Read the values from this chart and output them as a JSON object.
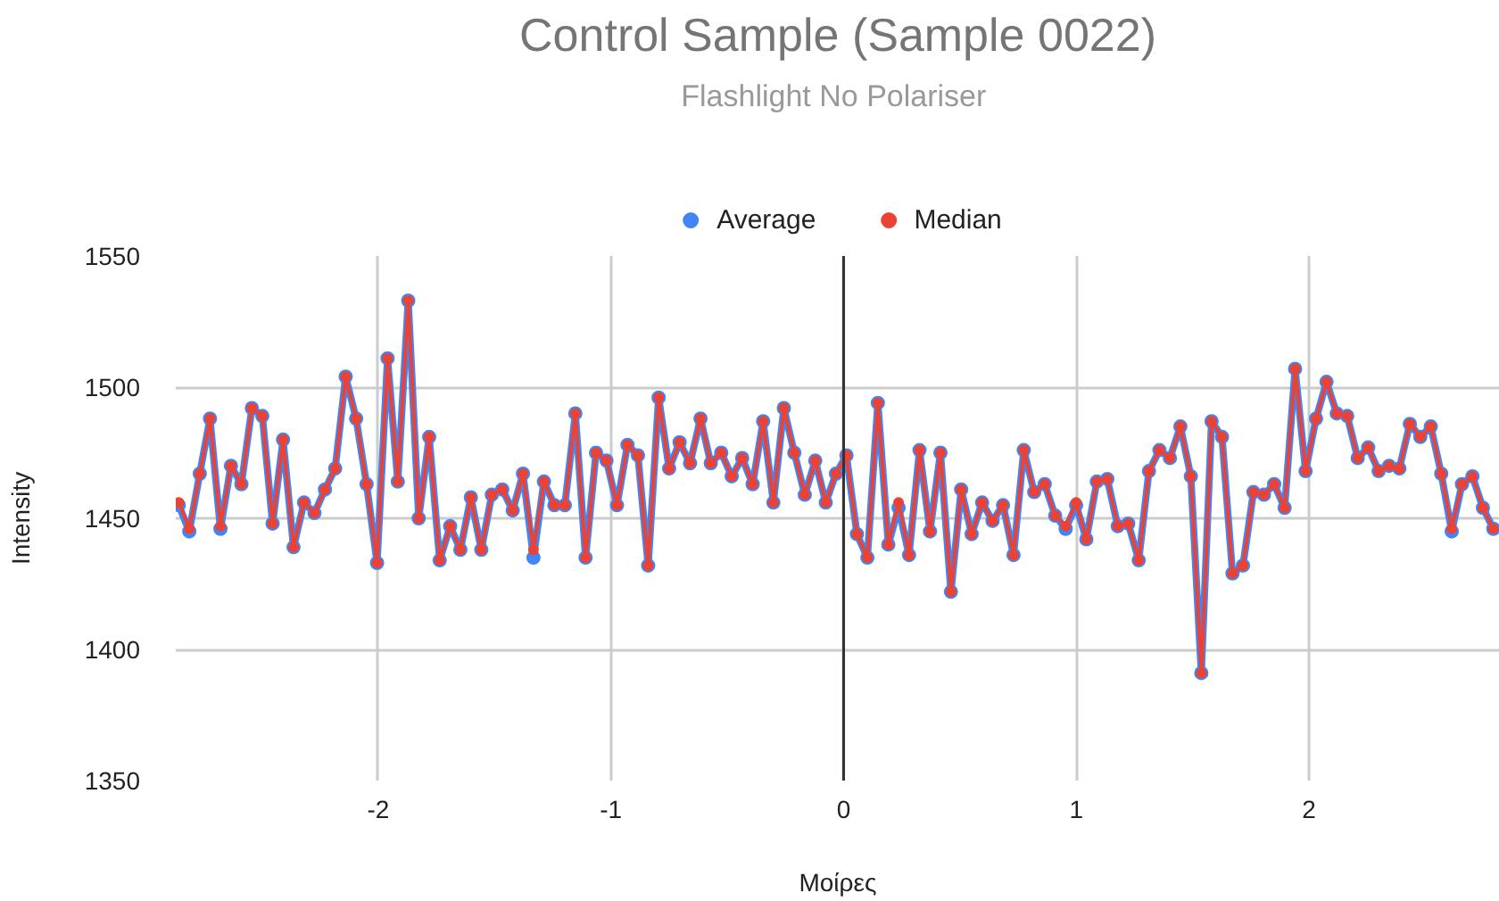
{
  "chart_data": {
    "type": "line",
    "title": "Control Sample (Sample 0022)",
    "subtitle": "Flashlight  No Polariser",
    "xlabel": "Μοίρες",
    "ylabel": "Intensity",
    "x": [
      -2.857,
      -2.812,
      -2.767,
      -2.723,
      -2.678,
      -2.633,
      -2.588,
      -2.543,
      -2.498,
      -2.454,
      -2.409,
      -2.364,
      -2.319,
      -2.274,
      -2.229,
      -2.185,
      -2.14,
      -2.095,
      -2.05,
      -2.005,
      -1.96,
      -1.916,
      -1.871,
      -1.826,
      -1.781,
      -1.736,
      -1.691,
      -1.647,
      -1.602,
      -1.557,
      -1.512,
      -1.467,
      -1.422,
      -1.378,
      -1.333,
      -1.288,
      -1.243,
      -1.198,
      -1.153,
      -1.109,
      -1.064,
      -1.019,
      -0.974,
      -0.929,
      -0.884,
      -0.84,
      -0.795,
      -0.75,
      -0.705,
      -0.66,
      -0.615,
      -0.571,
      -0.526,
      -0.481,
      -0.436,
      -0.391,
      -0.346,
      -0.302,
      -0.257,
      -0.212,
      -0.167,
      -0.122,
      -0.077,
      -0.033,
      0.012,
      0.057,
      0.102,
      0.147,
      0.192,
      0.236,
      0.281,
      0.326,
      0.371,
      0.416,
      0.461,
      0.505,
      0.55,
      0.595,
      0.64,
      0.685,
      0.73,
      0.774,
      0.819,
      0.864,
      0.909,
      0.954,
      0.999,
      1.043,
      1.088,
      1.133,
      1.178,
      1.223,
      1.268,
      1.312,
      1.357,
      1.402,
      1.447,
      1.492,
      1.537,
      1.581,
      1.626,
      1.671,
      1.716,
      1.761,
      1.806,
      1.85,
      1.895,
      1.94,
      1.985,
      2.03,
      2.075,
      2.119,
      2.164,
      2.209,
      2.254,
      2.299,
      2.344,
      2.388,
      2.433,
      2.478,
      2.523,
      2.568,
      2.613,
      2.657,
      2.702,
      2.747,
      2.792
    ],
    "series": [
      {
        "name": "Average",
        "color": "#4285f4",
        "values": [
          1455,
          1445,
          1467,
          1488,
          1446,
          1470,
          1463,
          1492,
          1489,
          1448,
          1480,
          1439,
          1456,
          1452,
          1461,
          1469,
          1504,
          1488,
          1463,
          1433,
          1511,
          1464,
          1533,
          1450,
          1481,
          1434,
          1447,
          1438,
          1458,
          1438,
          1459,
          1461,
          1453,
          1467,
          1435,
          1464,
          1455,
          1455,
          1490,
          1435,
          1475,
          1472,
          1455,
          1478,
          1474,
          1432,
          1496,
          1469,
          1479,
          1471,
          1488,
          1471,
          1475,
          1466,
          1473,
          1463,
          1487,
          1456,
          1492,
          1475,
          1459,
          1472,
          1456,
          1467,
          1474,
          1444,
          1435,
          1494,
          1440,
          1454,
          1436,
          1476,
          1445,
          1475,
          1422,
          1461,
          1444,
          1456,
          1449,
          1455,
          1436,
          1476,
          1460,
          1463,
          1451,
          1446,
          1455,
          1442,
          1464,
          1465,
          1447,
          1448,
          1434,
          1468,
          1476,
          1473,
          1485,
          1466,
          1391,
          1487,
          1481,
          1429,
          1432,
          1460,
          1459,
          1463,
          1454,
          1507,
          1468,
          1488,
          1502,
          1490,
          1489,
          1473,
          1477,
          1468,
          1470,
          1469,
          1486,
          1481,
          1485,
          1467,
          1445,
          1463,
          1466,
          1454,
          1446
        ]
      },
      {
        "name": "Median",
        "color": "#ea4335",
        "values": [
          1456,
          1446,
          1467,
          1488,
          1447,
          1470,
          1463,
          1492,
          1489,
          1448,
          1480,
          1439,
          1456,
          1452,
          1461,
          1469,
          1504,
          1488,
          1463,
          1433,
          1511,
          1464,
          1533,
          1450,
          1481,
          1434,
          1447,
          1438,
          1458,
          1438,
          1459,
          1461,
          1453,
          1467,
          1438,
          1464,
          1455,
          1455,
          1490,
          1435,
          1475,
          1472,
          1455,
          1478,
          1474,
          1432,
          1496,
          1469,
          1479,
          1471,
          1488,
          1471,
          1475,
          1466,
          1473,
          1463,
          1487,
          1456,
          1492,
          1475,
          1459,
          1472,
          1456,
          1467,
          1474,
          1444,
          1435,
          1494,
          1440,
          1456,
          1436,
          1476,
          1445,
          1475,
          1422,
          1461,
          1444,
          1456,
          1449,
          1455,
          1436,
          1476,
          1460,
          1463,
          1451,
          1447,
          1456,
          1442,
          1464,
          1465,
          1447,
          1448,
          1434,
          1468,
          1476,
          1473,
          1485,
          1466,
          1391,
          1487,
          1481,
          1429,
          1432,
          1460,
          1459,
          1463,
          1454,
          1507,
          1468,
          1488,
          1502,
          1490,
          1489,
          1473,
          1477,
          1468,
          1470,
          1469,
          1486,
          1481,
          1485,
          1467,
          1446,
          1463,
          1466,
          1454,
          1446
        ]
      }
    ],
    "xlim": [
      -2.87,
      2.82
    ],
    "xticks": [
      {
        "value": -2,
        "label": "-2"
      },
      {
        "value": -1,
        "label": "-1"
      },
      0,
      1,
      2
    ],
    "ylim": [
      1350,
      1550
    ],
    "yticks": [
      1350,
      1400,
      1450,
      1500,
      1550
    ],
    "ref_lines": [
      {
        "axis": "x",
        "value": 0,
        "color": "#333333"
      }
    ],
    "grid": true,
    "legend": "top",
    "marker": "circle",
    "line_style": "solid"
  }
}
